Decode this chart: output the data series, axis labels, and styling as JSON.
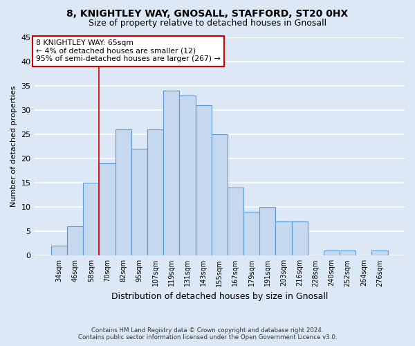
{
  "title1": "8, KNIGHTLEY WAY, GNOSALL, STAFFORD, ST20 0HX",
  "title2": "Size of property relative to detached houses in Gnosall",
  "xlabel": "Distribution of detached houses by size in Gnosall",
  "ylabel": "Number of detached properties",
  "categories": [
    "34sqm",
    "46sqm",
    "58sqm",
    "70sqm",
    "82sqm",
    "95sqm",
    "107sqm",
    "119sqm",
    "131sqm",
    "143sqm",
    "155sqm",
    "167sqm",
    "179sqm",
    "191sqm",
    "203sqm",
    "216sqm",
    "228sqm",
    "240sqm",
    "252sqm",
    "264sqm",
    "276sqm"
  ],
  "values": [
    2,
    6,
    15,
    19,
    26,
    22,
    26,
    34,
    33,
    31,
    25,
    14,
    9,
    10,
    7,
    7,
    0,
    1,
    1,
    0,
    1
  ],
  "bar_color": "#c5d8ed",
  "bar_edge_color": "#5b9bd5",
  "annotation_line_bar_index": 2.5,
  "annotation_text_line1": "8 KNIGHTLEY WAY: 65sqm",
  "annotation_text_line2": "← 4% of detached houses are smaller (12)",
  "annotation_text_line3": "95% of semi-detached houses are larger (267) →",
  "annotation_box_color": "#ffffff",
  "annotation_box_edge_color": "#cc0000",
  "ylim": [
    0,
    45
  ],
  "yticks": [
    0,
    5,
    10,
    15,
    20,
    25,
    30,
    35,
    40,
    45
  ],
  "footer1": "Contains HM Land Registry data © Crown copyright and database right 2024.",
  "footer2": "Contains public sector information licensed under the Open Government Licence v3.0.",
  "bg_color": "#dce8f5",
  "grid_color": "#ffffff"
}
